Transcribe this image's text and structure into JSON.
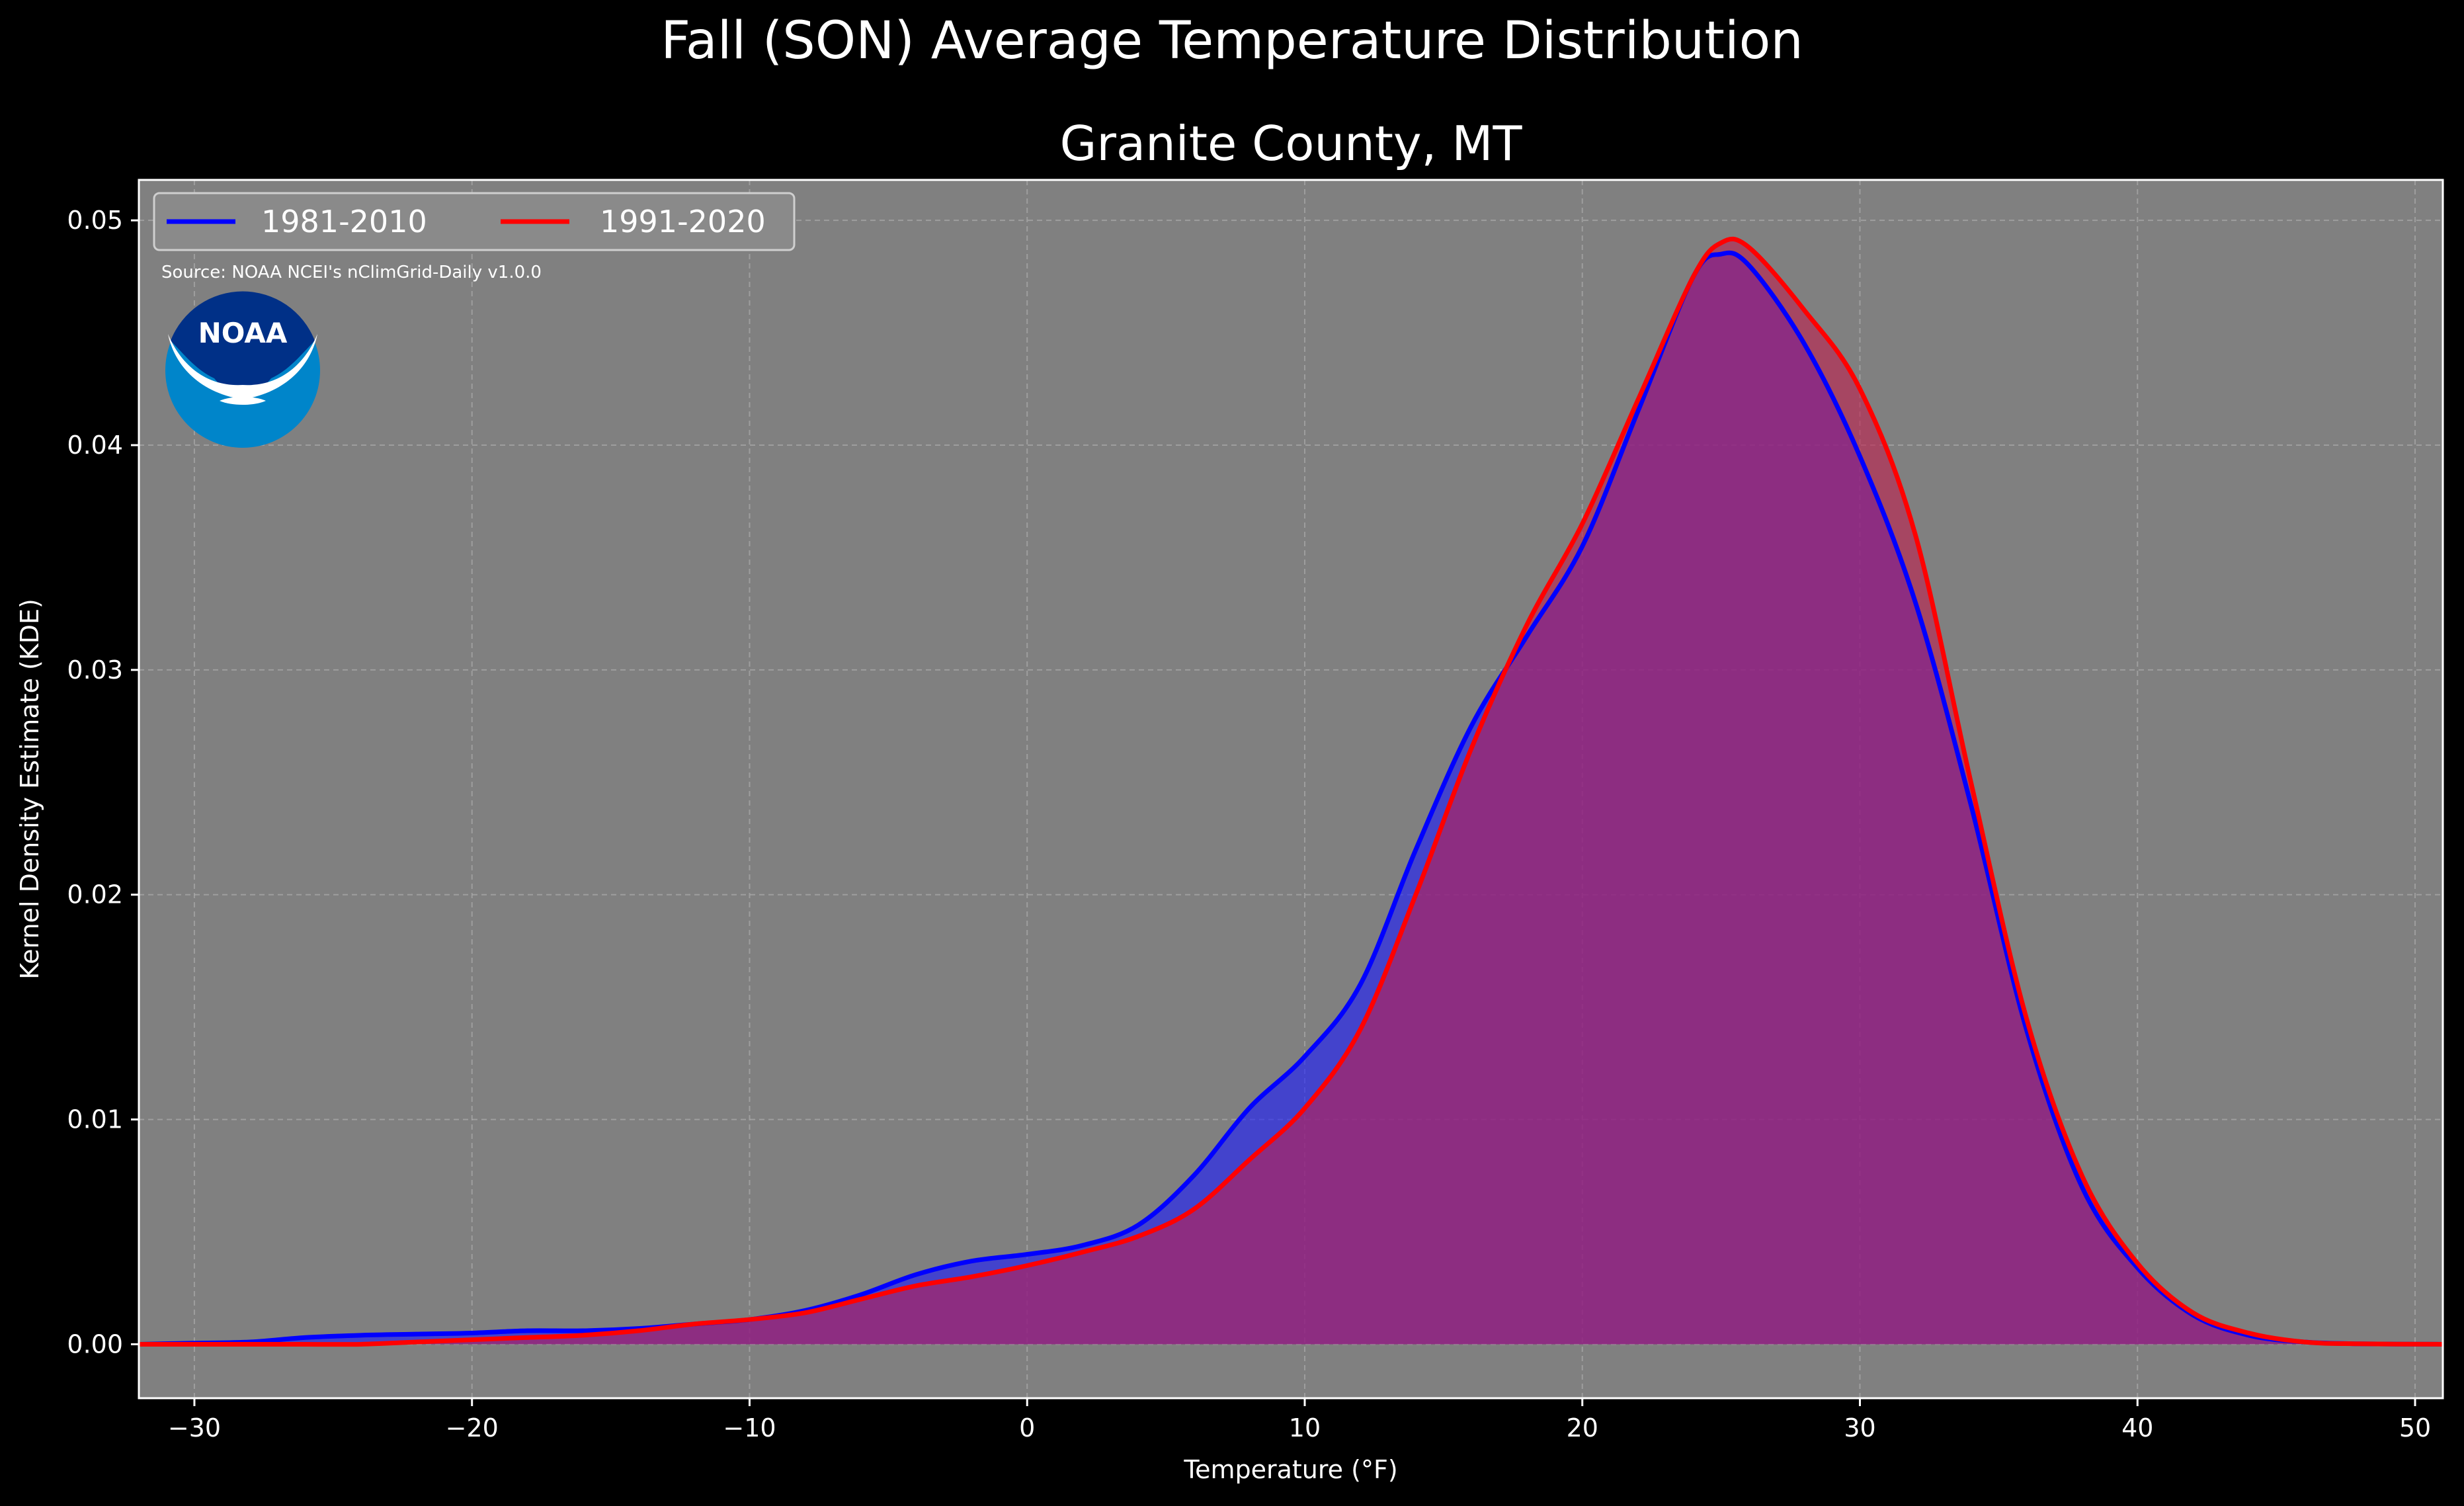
{
  "header": {
    "suptitle": "Fall (SON) Average Temperature Distribution",
    "subtitle": "Granite County, MT"
  },
  "source_note": "Source: NOAA NCEI's nClimGrid-Daily v1.0.0",
  "logo": {
    "name": "noaa-logo-icon",
    "text": "NOAA",
    "outer_color": "#0085CA",
    "inner_color": "#003087"
  },
  "colors": {
    "background": "#000000",
    "plot_bg": "#808080",
    "series_1": "#0000ff",
    "series_2": "#ff0000"
  },
  "chart_data": {
    "type": "area",
    "title": "Granite County, MT",
    "xlabel": "Temperature (°F)",
    "ylabel": "Kernel Density Estimate (KDE)",
    "xlim": [
      -32,
      51
    ],
    "ylim": [
      -0.0024,
      0.0518
    ],
    "xticks": [
      -30,
      -20,
      -10,
      0,
      10,
      20,
      30,
      40,
      50
    ],
    "yticks": [
      0.0,
      0.01,
      0.02,
      0.03,
      0.04,
      0.05
    ],
    "xtick_labels": [
      "−30",
      "−20",
      "−10",
      "0",
      "10",
      "20",
      "30",
      "40",
      "50"
    ],
    "ytick_labels": [
      "0.00",
      "0.01",
      "0.02",
      "0.03",
      "0.04",
      "0.05"
    ],
    "grid": true,
    "legend": {
      "placement": "top-left",
      "columns": 2
    },
    "series": [
      {
        "name": "1981-2010",
        "color": "#0000ff",
        "fill_color": "#1a1aff",
        "x": [
          -32,
          -30,
          -28,
          -26,
          -24,
          -22,
          -20,
          -18,
          -16,
          -14,
          -12,
          -10,
          -8,
          -6,
          -4,
          -2,
          0,
          2,
          4,
          6,
          8,
          10,
          12,
          14,
          16,
          18,
          20,
          22,
          24,
          25,
          26,
          28,
          30,
          32,
          34,
          36,
          38,
          40,
          42,
          44,
          46,
          48,
          51
        ],
        "y": [
          0.0,
          5e-05,
          0.0001,
          0.0003,
          0.0004,
          0.00045,
          0.0005,
          0.0006,
          0.0006,
          0.0007,
          0.0009,
          0.0011,
          0.0015,
          0.0022,
          0.0031,
          0.0037,
          0.004,
          0.0044,
          0.0053,
          0.0075,
          0.0105,
          0.0128,
          0.016,
          0.022,
          0.0275,
          0.0315,
          0.0355,
          0.0415,
          0.0475,
          0.0485,
          0.048,
          0.0445,
          0.0395,
          0.033,
          0.024,
          0.014,
          0.007,
          0.0034,
          0.0013,
          0.0004,
          0.0001,
          2e-05,
          0.0
        ]
      },
      {
        "name": "1991-2020",
        "color": "#ff0000",
        "fill_color": "#c0204e",
        "x": [
          -32,
          -30,
          -28,
          -26,
          -24,
          -22,
          -20,
          -18,
          -16,
          -14,
          -12,
          -10,
          -8,
          -6,
          -4,
          -2,
          0,
          2,
          4,
          6,
          8,
          10,
          12,
          14,
          16,
          18,
          20,
          22,
          24,
          25,
          26,
          28,
          30,
          32,
          34,
          36,
          38,
          40,
          42,
          44,
          46,
          48,
          51
        ],
        "y": [
          0.0,
          0.0,
          0.0,
          0.0,
          0.0,
          0.0001,
          0.0002,
          0.0003,
          0.0004,
          0.0006,
          0.0009,
          0.0011,
          0.0014,
          0.002,
          0.0026,
          0.003,
          0.0035,
          0.0041,
          0.0048,
          0.006,
          0.0082,
          0.0105,
          0.014,
          0.02,
          0.0265,
          0.032,
          0.0365,
          0.042,
          0.0475,
          0.049,
          0.0488,
          0.046,
          0.0425,
          0.036,
          0.025,
          0.0145,
          0.0075,
          0.0036,
          0.0014,
          0.0005,
          0.0001,
          2e-05,
          0.0
        ]
      }
    ]
  }
}
